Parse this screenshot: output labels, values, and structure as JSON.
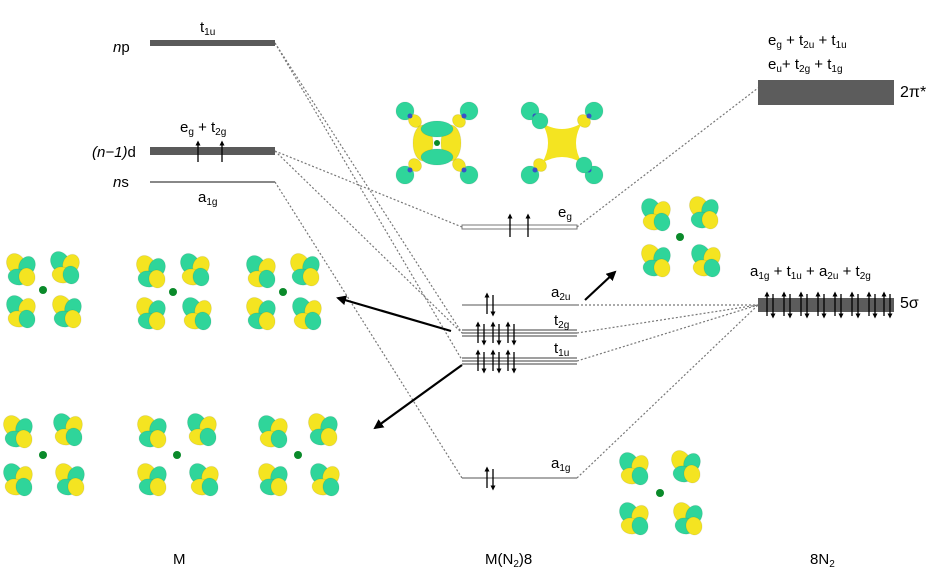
{
  "columns": {
    "left": "M",
    "middle": "M(N2)8",
    "right": "8N2"
  },
  "metal_levels": {
    "np": {
      "prefix": "n",
      "suffix": "p",
      "symmetry": "t1u"
    },
    "nd": {
      "prefix": "(n−1)",
      "suffix": "d",
      "symmetry": "eg + t2g",
      "electrons": 2
    },
    "ns": {
      "prefix": "n",
      "suffix": "s",
      "symmetry": "a1g"
    }
  },
  "complex_levels": [
    {
      "symmetry": "eg",
      "electrons": 2
    },
    {
      "symmetry": "a2u",
      "electrons": 2
    },
    {
      "symmetry": "t2g",
      "electrons": 6
    },
    {
      "symmetry": "t1u",
      "electrons": 6
    },
    {
      "symmetry": "a1g",
      "electrons": 2
    }
  ],
  "ligand_levels": {
    "pi_star": {
      "label": "2π*",
      "line1": "eg + t2u + t1u",
      "line2": "eu+ t2g + t1g"
    },
    "sigma": {
      "label": "5σ",
      "symmetry": "a1g + t1u + a2u + t2g",
      "electrons": 16
    }
  },
  "colors": {
    "orbital_green": "#2fd59a",
    "orbital_yellow": "#f4e421",
    "metal_center": "#0a8a2a",
    "nitrogen_blue": "#3a52c8",
    "level_bar": "#555555"
  },
  "icons": [
    "orbital-lobe-icon",
    "up-spin-arrow-icon",
    "down-spin-arrow-icon"
  ]
}
